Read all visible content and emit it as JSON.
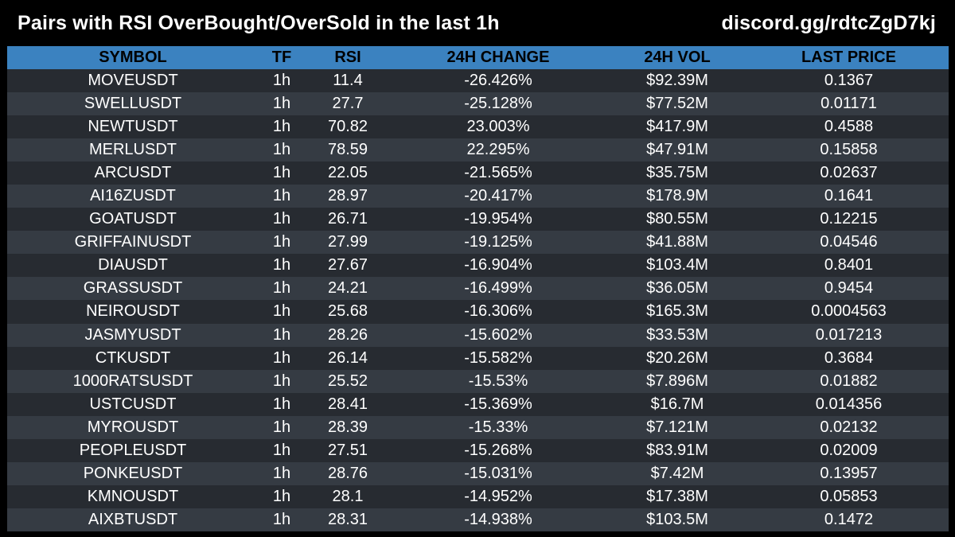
{
  "header": {
    "title": "Pairs with RSI OverBought/OverSold in the last 1h",
    "link": "discord.gg/rdtcZgD7kj"
  },
  "table": {
    "columns": [
      "SYMBOL",
      "TF",
      "RSI",
      "24H CHANGE",
      "24H VOL",
      "LAST PRICE"
    ],
    "rows": [
      [
        "MOVEUSDT",
        "1h",
        "11.4",
        "-26.426%",
        "$92.39M",
        "0.1367"
      ],
      [
        "SWELLUSDT",
        "1h",
        "27.7",
        "-25.128%",
        "$77.52M",
        "0.01171"
      ],
      [
        "NEWTUSDT",
        "1h",
        "70.82",
        "23.003%",
        "$417.9M",
        "0.4588"
      ],
      [
        "MERLUSDT",
        "1h",
        "78.59",
        "22.295%",
        "$47.91M",
        "0.15858"
      ],
      [
        "ARCUSDT",
        "1h",
        "22.05",
        "-21.565%",
        "$35.75M",
        "0.02637"
      ],
      [
        "AI16ZUSDT",
        "1h",
        "28.97",
        "-20.417%",
        "$178.9M",
        "0.1641"
      ],
      [
        "GOATUSDT",
        "1h",
        "26.71",
        "-19.954%",
        "$80.55M",
        "0.12215"
      ],
      [
        "GRIFFAINUSDT",
        "1h",
        "27.99",
        "-19.125%",
        "$41.88M",
        "0.04546"
      ],
      [
        "DIAUSDT",
        "1h",
        "27.67",
        "-16.904%",
        "$103.4M",
        "0.8401"
      ],
      [
        "GRASSUSDT",
        "1h",
        "24.21",
        "-16.499%",
        "$36.05M",
        "0.9454"
      ],
      [
        "NEIROUSDT",
        "1h",
        "25.68",
        "-16.306%",
        "$165.3M",
        "0.0004563"
      ],
      [
        "JASMYUSDT",
        "1h",
        "28.26",
        "-15.602%",
        "$33.53M",
        "0.017213"
      ],
      [
        "CTKUSDT",
        "1h",
        "26.14",
        "-15.582%",
        "$20.26M",
        "0.3684"
      ],
      [
        "1000RATSUSDT",
        "1h",
        "25.52",
        "-15.53%",
        "$7.896M",
        "0.01882"
      ],
      [
        "USTCUSDT",
        "1h",
        "28.41",
        "-15.369%",
        "$16.7M",
        "0.014356"
      ],
      [
        "MYROUSDT",
        "1h",
        "28.39",
        "-15.33%",
        "$7.121M",
        "0.02132"
      ],
      [
        "PEOPLEUSDT",
        "1h",
        "27.51",
        "-15.268%",
        "$83.91M",
        "0.02009"
      ],
      [
        "PONKEUSDT",
        "1h",
        "28.76",
        "-15.031%",
        "$7.42M",
        "0.13957"
      ],
      [
        "KMNOUSDT",
        "1h",
        "28.1",
        "-14.952%",
        "$17.38M",
        "0.05853"
      ],
      [
        "AIXBTUSDT",
        "1h",
        "28.31",
        "-14.938%",
        "$103.5M",
        "0.1472"
      ]
    ]
  },
  "colors": {
    "background": "#000000",
    "header_row": "#3b82c0",
    "row_odd": "#272b31",
    "row_even": "#353b43",
    "text": "#ffffff"
  }
}
